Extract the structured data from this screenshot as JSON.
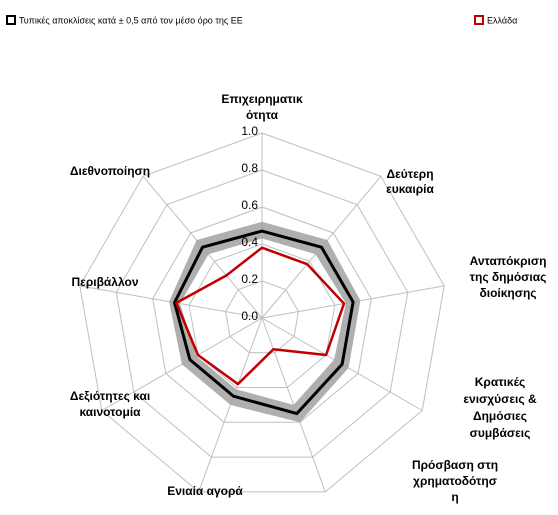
{
  "chart_data": {
    "type": "radar",
    "categories": [
      [
        "Επιχειρηματικ",
        "ότητα"
      ],
      [
        "Δεύτερη",
        "ευκαιρία"
      ],
      [
        "Ανταπόκριση",
        "της δημόσιας",
        "διοίκησης"
      ],
      [
        "Κρατικές",
        "ενισχύσεις &",
        "Δημόσιες",
        "συμβάσεις"
      ],
      [
        "Πρόσβαση στη",
        "χρηματοδότησ",
        "η"
      ],
      [
        "Ενιαία αγορά"
      ],
      [
        "Δεξιότητες και",
        "καινοτομία"
      ],
      [
        "Περιβάλλον"
      ],
      [
        "Διεθνοποίηση"
      ]
    ],
    "series": [
      {
        "name": "Τυπικές αποκλίσεις  κατά  ± 0,5 από  τον μέσο όρο της ΕΕ",
        "color": "#000000",
        "band_color": "#a6a6a6",
        "values": [
          0.47,
          0.5,
          0.5,
          0.5,
          0.55,
          0.45,
          0.45,
          0.48,
          0.5
        ],
        "lower": [
          0.43,
          0.45,
          0.46,
          0.45,
          0.5,
          0.41,
          0.41,
          0.45,
          0.45
        ],
        "upper": [
          0.52,
          0.55,
          0.54,
          0.54,
          0.6,
          0.5,
          0.5,
          0.51,
          0.55
        ]
      },
      {
        "name": "Ελλάδα",
        "color": "#c00000",
        "values": [
          0.38,
          0.38,
          0.45,
          0.4,
          0.18,
          0.38,
          0.4,
          0.47,
          0.3
        ]
      }
    ],
    "ylim": [
      0,
      1
    ],
    "yticks": [
      {
        "value": 0,
        "label": "0.0"
      },
      0.2,
      0.4,
      0.6,
      0.8,
      {
        "value": 1,
        "label": "1.0"
      }
    ],
    "grid": true
  }
}
